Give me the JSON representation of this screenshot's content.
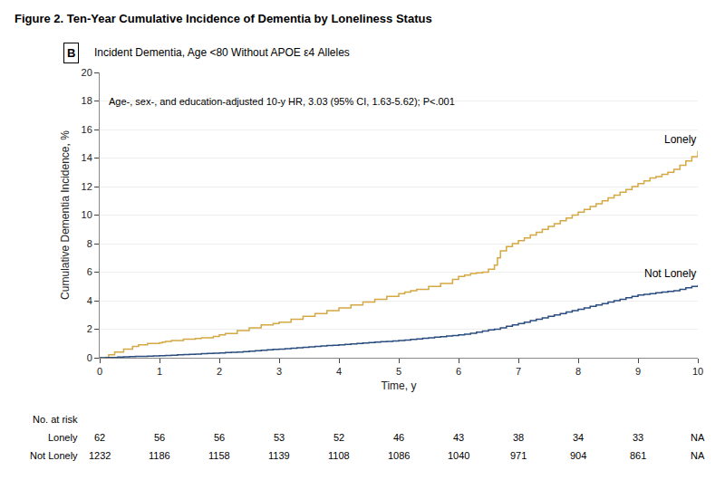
{
  "chart_data": {
    "type": "line",
    "line_style": "step",
    "title": "Figure 2. Ten-Year Cumulative Incidence of Dementia by Loneliness Status",
    "panel_label": "B",
    "subtitle": "Incident Dementia, Age <80 Without APOE ε4 Alleles",
    "annotations": [
      "Age-, sex-, and education-adjusted 10-y HR, 3.03 (95% CI, 1.63-5.62); P<.001"
    ],
    "xlabel": "Time, y",
    "ylabel": "Cumulative Dementia Incidence, %",
    "xlim": [
      0,
      10
    ],
    "ylim": [
      0,
      20
    ],
    "xticks": [
      0,
      1,
      2,
      3,
      4,
      5,
      6,
      7,
      8,
      9,
      10
    ],
    "yticks": [
      0,
      2,
      4,
      6,
      8,
      10,
      12,
      14,
      16,
      18,
      20
    ],
    "grid": "y",
    "series": [
      {
        "name": "Lonely",
        "color": "#D4A843",
        "x": [
          0,
          0.15,
          0.25,
          0.4,
          0.55,
          0.65,
          0.8,
          1.0,
          1.05,
          1.1,
          1.2,
          1.4,
          1.6,
          1.7,
          1.9,
          2.0,
          2.1,
          2.3,
          2.5,
          2.7,
          2.9,
          3.0,
          3.2,
          3.4,
          3.6,
          3.8,
          4.0,
          4.2,
          4.4,
          4.6,
          4.8,
          5.0,
          5.1,
          5.2,
          5.3,
          5.5,
          5.7,
          5.9,
          6.0,
          6.1,
          6.2,
          6.3,
          6.4,
          6.5,
          6.6,
          6.65,
          6.7,
          6.8,
          6.9,
          7.0,
          7.1,
          7.2,
          7.3,
          7.4,
          7.5,
          7.6,
          7.7,
          7.8,
          7.9,
          8.0,
          8.1,
          8.2,
          8.3,
          8.4,
          8.5,
          8.6,
          8.7,
          8.8,
          8.9,
          9.0,
          9.1,
          9.2,
          9.3,
          9.4,
          9.5,
          9.6,
          9.7,
          9.8,
          9.9,
          10.0
        ],
        "values": [
          0,
          0.2,
          0.4,
          0.6,
          0.8,
          0.9,
          1.0,
          1.05,
          1.1,
          1.15,
          1.2,
          1.3,
          1.35,
          1.4,
          1.5,
          1.6,
          1.7,
          1.9,
          2.1,
          2.3,
          2.4,
          2.5,
          2.7,
          2.9,
          3.1,
          3.3,
          3.5,
          3.7,
          3.9,
          4.1,
          4.3,
          4.5,
          4.6,
          4.7,
          4.8,
          5.0,
          5.2,
          5.5,
          5.7,
          5.8,
          5.9,
          5.95,
          6.0,
          6.2,
          6.5,
          7.0,
          7.5,
          7.8,
          8.0,
          8.2,
          8.4,
          8.6,
          8.8,
          9.0,
          9.2,
          9.4,
          9.6,
          9.8,
          10.0,
          10.2,
          10.4,
          10.6,
          10.8,
          11.0,
          11.2,
          11.4,
          11.6,
          11.8,
          12.0,
          12.2,
          12.4,
          12.6,
          12.7,
          12.85,
          13.0,
          13.2,
          13.5,
          13.8,
          14.1,
          14.5
        ]
      },
      {
        "name": "Not Lonely",
        "color": "#2B4C7E",
        "x": [
          0,
          0.1,
          0.2,
          0.3,
          0.4,
          0.5,
          0.6,
          0.7,
          0.8,
          0.9,
          1.0,
          1.1,
          1.2,
          1.3,
          1.4,
          1.5,
          1.6,
          1.7,
          1.8,
          1.9,
          2.0,
          2.1,
          2.2,
          2.3,
          2.4,
          2.5,
          2.6,
          2.7,
          2.8,
          2.9,
          3.0,
          3.1,
          3.2,
          3.3,
          3.4,
          3.5,
          3.6,
          3.7,
          3.8,
          3.9,
          4.0,
          4.1,
          4.2,
          4.3,
          4.4,
          4.5,
          4.6,
          4.7,
          4.8,
          4.9,
          5.0,
          5.1,
          5.2,
          5.3,
          5.4,
          5.5,
          5.6,
          5.7,
          5.8,
          5.9,
          6.0,
          6.1,
          6.2,
          6.3,
          6.4,
          6.5,
          6.6,
          6.7,
          6.8,
          6.9,
          7.0,
          7.1,
          7.2,
          7.3,
          7.4,
          7.5,
          7.6,
          7.7,
          7.8,
          7.9,
          8.0,
          8.1,
          8.2,
          8.3,
          8.4,
          8.5,
          8.6,
          8.7,
          8.8,
          8.9,
          9.0,
          9.1,
          9.2,
          9.3,
          9.4,
          9.5,
          9.6,
          9.7,
          9.8,
          9.9,
          10.0
        ],
        "values": [
          0,
          0.01,
          0.02,
          0.04,
          0.06,
          0.08,
          0.09,
          0.1,
          0.11,
          0.12,
          0.14,
          0.16,
          0.18,
          0.2,
          0.22,
          0.24,
          0.26,
          0.28,
          0.3,
          0.32,
          0.34,
          0.36,
          0.38,
          0.4,
          0.43,
          0.46,
          0.49,
          0.52,
          0.55,
          0.58,
          0.61,
          0.64,
          0.67,
          0.7,
          0.73,
          0.76,
          0.79,
          0.82,
          0.85,
          0.88,
          0.91,
          0.94,
          0.97,
          1.0,
          1.03,
          1.06,
          1.09,
          1.12,
          1.15,
          1.18,
          1.21,
          1.24,
          1.28,
          1.32,
          1.36,
          1.4,
          1.44,
          1.48,
          1.52,
          1.56,
          1.6,
          1.65,
          1.72,
          1.8,
          1.88,
          1.95,
          2.0,
          2.1,
          2.2,
          2.3,
          2.4,
          2.5,
          2.6,
          2.7,
          2.8,
          2.9,
          3.0,
          3.1,
          3.2,
          3.3,
          3.4,
          3.5,
          3.6,
          3.7,
          3.8,
          3.9,
          4.0,
          4.1,
          4.2,
          4.3,
          4.4,
          4.45,
          4.5,
          4.55,
          4.6,
          4.65,
          4.7,
          4.8,
          4.9,
          5.0,
          5.1
        ]
      }
    ],
    "at_risk": {
      "label": "No. at risk",
      "x": [
        0,
        1,
        2,
        3,
        4,
        5,
        6,
        7,
        8,
        9,
        10
      ],
      "rows": [
        {
          "name": "Lonely",
          "values": [
            "62",
            "56",
            "56",
            "53",
            "52",
            "46",
            "43",
            "38",
            "34",
            "33",
            "NA"
          ]
        },
        {
          "name": "Not Lonely",
          "values": [
            "1232",
            "1186",
            "1158",
            "1139",
            "1108",
            "1086",
            "1040",
            "971",
            "904",
            "861",
            "NA"
          ]
        }
      ]
    }
  }
}
